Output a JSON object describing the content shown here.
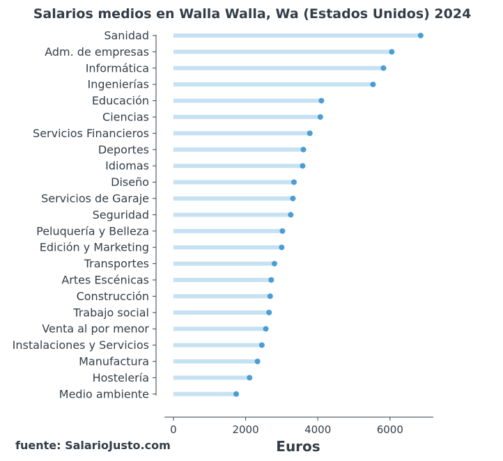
{
  "chart_data": {
    "type": "bar",
    "title": "Salarios medios en Walla Walla, Wa (Estados Unidos) 2024",
    "xlabel": "Euros",
    "ylabel": "",
    "xlim": [
      -250,
      7200
    ],
    "xticks": [
      0,
      2000,
      4000,
      6000
    ],
    "xtick_labels": [
      "0",
      "2000",
      "4000",
      "6000"
    ],
    "grid": false,
    "orientation": "horizontal",
    "style": "lollipop",
    "colors": {
      "stem": "#c6e1f1",
      "dot": "#3a94d0",
      "text": "#333d47",
      "axis": "#333d47"
    },
    "categories": [
      "Sanidad",
      "Adm. de empresas",
      "Informática",
      "Ingenierías",
      "Educación",
      "Ciencias",
      "Servicios Financieros",
      "Deportes",
      "Idiomas",
      "Diseño",
      "Servicios de Garaje",
      "Seguridad",
      "Peluquería y Belleza",
      "Edición y Marketing",
      "Transportes",
      "Artes Escénicas",
      "Construcción",
      "Trabajo social",
      "Venta al por menor",
      "Instalaciones y Servicios",
      "Manufactura",
      "Hostelería",
      "Medio ambiente"
    ],
    "values": [
      6850,
      6050,
      5820,
      5530,
      4100,
      4070,
      3780,
      3600,
      3580,
      3340,
      3310,
      3250,
      3020,
      3000,
      2800,
      2710,
      2680,
      2650,
      2560,
      2450,
      2330,
      2110,
      1740
    ]
  },
  "footer": {
    "source": "fuente: SalarioJusto.com"
  }
}
